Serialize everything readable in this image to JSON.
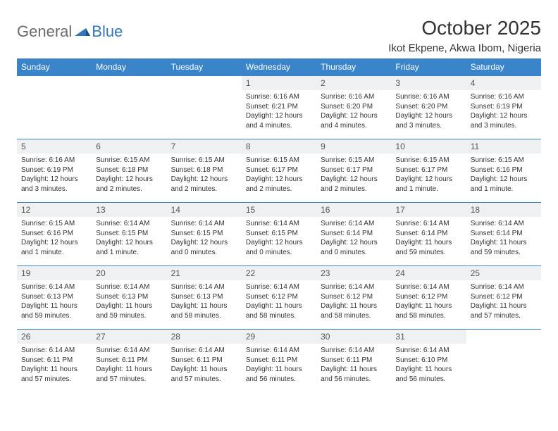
{
  "logo": {
    "general": "General",
    "blue": "Blue"
  },
  "title": "October 2025",
  "location": "Ikot Ekpene, Akwa Ibom, Nigeria",
  "colors": {
    "header_bg": "#3a85c9",
    "header_text": "#ffffff",
    "daynum_bg": "#eef0f2",
    "border": "#3a85c9",
    "logo_gray": "#6a6a6a",
    "logo_blue": "#2f78bf"
  },
  "fonts": {
    "title_size_pt": 28,
    "location_size_pt": 15,
    "th_size_pt": 12,
    "daynum_size_pt": 12,
    "body_size_pt": 10
  },
  "weekdays": [
    "Sunday",
    "Monday",
    "Tuesday",
    "Wednesday",
    "Thursday",
    "Friday",
    "Saturday"
  ],
  "weeks": [
    [
      null,
      null,
      null,
      {
        "n": "1",
        "sunrise": "Sunrise: 6:16 AM",
        "sunset": "Sunset: 6:21 PM",
        "daylight": "Daylight: 12 hours and 4 minutes."
      },
      {
        "n": "2",
        "sunrise": "Sunrise: 6:16 AM",
        "sunset": "Sunset: 6:20 PM",
        "daylight": "Daylight: 12 hours and 4 minutes."
      },
      {
        "n": "3",
        "sunrise": "Sunrise: 6:16 AM",
        "sunset": "Sunset: 6:20 PM",
        "daylight": "Daylight: 12 hours and 3 minutes."
      },
      {
        "n": "4",
        "sunrise": "Sunrise: 6:16 AM",
        "sunset": "Sunset: 6:19 PM",
        "daylight": "Daylight: 12 hours and 3 minutes."
      }
    ],
    [
      {
        "n": "5",
        "sunrise": "Sunrise: 6:16 AM",
        "sunset": "Sunset: 6:19 PM",
        "daylight": "Daylight: 12 hours and 3 minutes."
      },
      {
        "n": "6",
        "sunrise": "Sunrise: 6:15 AM",
        "sunset": "Sunset: 6:18 PM",
        "daylight": "Daylight: 12 hours and 2 minutes."
      },
      {
        "n": "7",
        "sunrise": "Sunrise: 6:15 AM",
        "sunset": "Sunset: 6:18 PM",
        "daylight": "Daylight: 12 hours and 2 minutes."
      },
      {
        "n": "8",
        "sunrise": "Sunrise: 6:15 AM",
        "sunset": "Sunset: 6:17 PM",
        "daylight": "Daylight: 12 hours and 2 minutes."
      },
      {
        "n": "9",
        "sunrise": "Sunrise: 6:15 AM",
        "sunset": "Sunset: 6:17 PM",
        "daylight": "Daylight: 12 hours and 2 minutes."
      },
      {
        "n": "10",
        "sunrise": "Sunrise: 6:15 AM",
        "sunset": "Sunset: 6:17 PM",
        "daylight": "Daylight: 12 hours and 1 minute."
      },
      {
        "n": "11",
        "sunrise": "Sunrise: 6:15 AM",
        "sunset": "Sunset: 6:16 PM",
        "daylight": "Daylight: 12 hours and 1 minute."
      }
    ],
    [
      {
        "n": "12",
        "sunrise": "Sunrise: 6:15 AM",
        "sunset": "Sunset: 6:16 PM",
        "daylight": "Daylight: 12 hours and 1 minute."
      },
      {
        "n": "13",
        "sunrise": "Sunrise: 6:14 AM",
        "sunset": "Sunset: 6:15 PM",
        "daylight": "Daylight: 12 hours and 1 minute."
      },
      {
        "n": "14",
        "sunrise": "Sunrise: 6:14 AM",
        "sunset": "Sunset: 6:15 PM",
        "daylight": "Daylight: 12 hours and 0 minutes."
      },
      {
        "n": "15",
        "sunrise": "Sunrise: 6:14 AM",
        "sunset": "Sunset: 6:15 PM",
        "daylight": "Daylight: 12 hours and 0 minutes."
      },
      {
        "n": "16",
        "sunrise": "Sunrise: 6:14 AM",
        "sunset": "Sunset: 6:14 PM",
        "daylight": "Daylight: 12 hours and 0 minutes."
      },
      {
        "n": "17",
        "sunrise": "Sunrise: 6:14 AM",
        "sunset": "Sunset: 6:14 PM",
        "daylight": "Daylight: 11 hours and 59 minutes."
      },
      {
        "n": "18",
        "sunrise": "Sunrise: 6:14 AM",
        "sunset": "Sunset: 6:14 PM",
        "daylight": "Daylight: 11 hours and 59 minutes."
      }
    ],
    [
      {
        "n": "19",
        "sunrise": "Sunrise: 6:14 AM",
        "sunset": "Sunset: 6:13 PM",
        "daylight": "Daylight: 11 hours and 59 minutes."
      },
      {
        "n": "20",
        "sunrise": "Sunrise: 6:14 AM",
        "sunset": "Sunset: 6:13 PM",
        "daylight": "Daylight: 11 hours and 59 minutes."
      },
      {
        "n": "21",
        "sunrise": "Sunrise: 6:14 AM",
        "sunset": "Sunset: 6:13 PM",
        "daylight": "Daylight: 11 hours and 58 minutes."
      },
      {
        "n": "22",
        "sunrise": "Sunrise: 6:14 AM",
        "sunset": "Sunset: 6:12 PM",
        "daylight": "Daylight: 11 hours and 58 minutes."
      },
      {
        "n": "23",
        "sunrise": "Sunrise: 6:14 AM",
        "sunset": "Sunset: 6:12 PM",
        "daylight": "Daylight: 11 hours and 58 minutes."
      },
      {
        "n": "24",
        "sunrise": "Sunrise: 6:14 AM",
        "sunset": "Sunset: 6:12 PM",
        "daylight": "Daylight: 11 hours and 58 minutes."
      },
      {
        "n": "25",
        "sunrise": "Sunrise: 6:14 AM",
        "sunset": "Sunset: 6:12 PM",
        "daylight": "Daylight: 11 hours and 57 minutes."
      }
    ],
    [
      {
        "n": "26",
        "sunrise": "Sunrise: 6:14 AM",
        "sunset": "Sunset: 6:11 PM",
        "daylight": "Daylight: 11 hours and 57 minutes."
      },
      {
        "n": "27",
        "sunrise": "Sunrise: 6:14 AM",
        "sunset": "Sunset: 6:11 PM",
        "daylight": "Daylight: 11 hours and 57 minutes."
      },
      {
        "n": "28",
        "sunrise": "Sunrise: 6:14 AM",
        "sunset": "Sunset: 6:11 PM",
        "daylight": "Daylight: 11 hours and 57 minutes."
      },
      {
        "n": "29",
        "sunrise": "Sunrise: 6:14 AM",
        "sunset": "Sunset: 6:11 PM",
        "daylight": "Daylight: 11 hours and 56 minutes."
      },
      {
        "n": "30",
        "sunrise": "Sunrise: 6:14 AM",
        "sunset": "Sunset: 6:11 PM",
        "daylight": "Daylight: 11 hours and 56 minutes."
      },
      {
        "n": "31",
        "sunrise": "Sunrise: 6:14 AM",
        "sunset": "Sunset: 6:10 PM",
        "daylight": "Daylight: 11 hours and 56 minutes."
      },
      null
    ]
  ]
}
